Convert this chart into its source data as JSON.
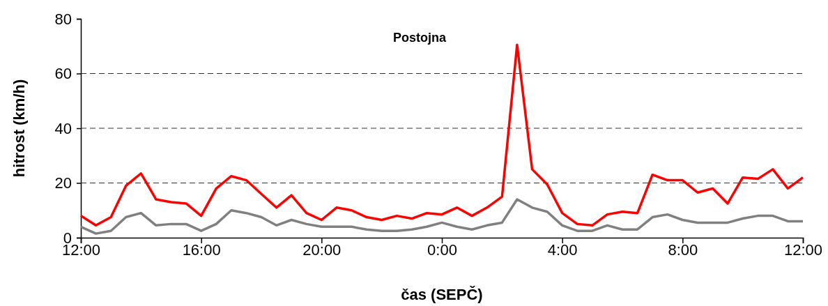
{
  "chart_data": {
    "type": "line",
    "title": "Postojna",
    "xlabel": "čas (SEPČ)",
    "ylabel": "hitrost (km/h)",
    "categories": [
      "12:00",
      null,
      null,
      null,
      null,
      null,
      null,
      null,
      "16:00",
      null,
      null,
      null,
      null,
      null,
      null,
      null,
      "20:00",
      null,
      null,
      null,
      null,
      null,
      null,
      null,
      "0:00",
      null,
      null,
      null,
      null,
      null,
      null,
      null,
      "4:00",
      null,
      null,
      null,
      null,
      null,
      null,
      null,
      "8:00",
      null,
      null,
      null,
      null,
      null,
      null,
      null,
      "12:00"
    ],
    "series": [
      {
        "color": "#ff0000",
        "values": [
          8,
          4.5,
          7.5,
          19,
          23.5,
          14,
          13,
          12.5,
          8,
          18,
          22.5,
          21,
          16,
          11,
          15.5,
          9,
          6.5,
          11,
          10,
          7.5,
          6.5,
          8,
          7,
          9,
          8.5,
          11,
          8,
          11,
          15,
          70.5,
          25,
          19.5,
          9,
          5,
          4.5,
          8.5,
          9.5,
          9,
          23,
          21,
          21,
          16.5,
          18,
          12.5,
          22,
          21.5,
          25,
          18,
          22
        ]
      },
      {
        "color": "#808080",
        "values": [
          4,
          1.5,
          2.5,
          7.5,
          9,
          4.5,
          5,
          5,
          2.5,
          5,
          10,
          9,
          7.5,
          4.5,
          6.5,
          5,
          4,
          4,
          4,
          3,
          2.5,
          2.5,
          3,
          4,
          5.5,
          4,
          3,
          4.5,
          5.5,
          14,
          11,
          9.5,
          4.5,
          2.5,
          2.5,
          4.5,
          3,
          3,
          7.5,
          8.5,
          6.5,
          5.5,
          5.5,
          5.5,
          7,
          8,
          8,
          6,
          6
        ]
      }
    ],
    "ylim": [
      0,
      80
    ],
    "yticks": [
      0,
      20,
      40,
      60,
      80
    ],
    "grid": "y",
    "line_style": "solid"
  }
}
